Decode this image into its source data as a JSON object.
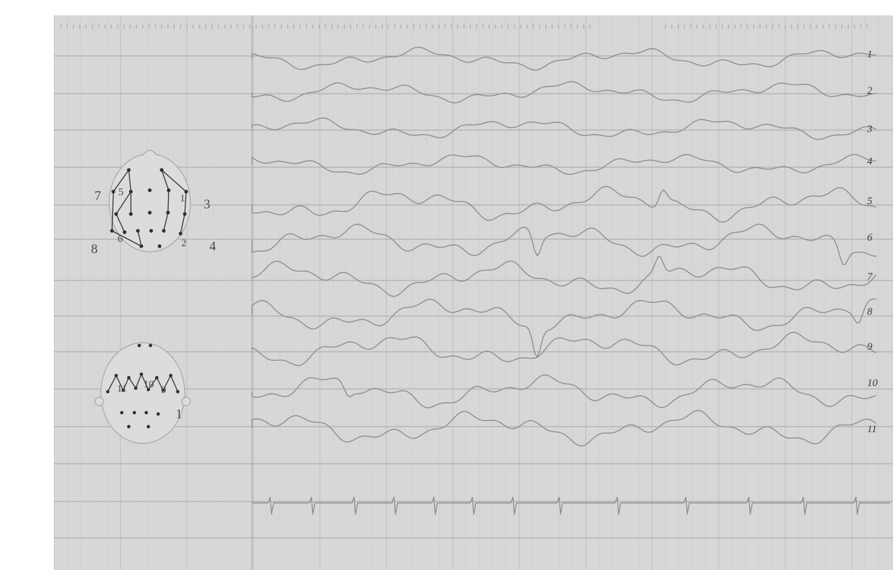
{
  "recording": {
    "channel_labels": [
      "1",
      "2",
      "3",
      "4",
      "5",
      "6",
      "7",
      "8",
      "9",
      "10",
      "11"
    ],
    "montage_upper_labels": [
      "7",
      "3",
      "8",
      "4",
      "5",
      "1",
      "6",
      "2"
    ],
    "montage_lower_labels": [
      "11",
      "10",
      "9",
      "1"
    ]
  },
  "colors": {
    "paper": "#d7d7d7",
    "grid": "#a5a5a5",
    "trace": "#8e8e8e",
    "ink": "#2f2f2f"
  }
}
